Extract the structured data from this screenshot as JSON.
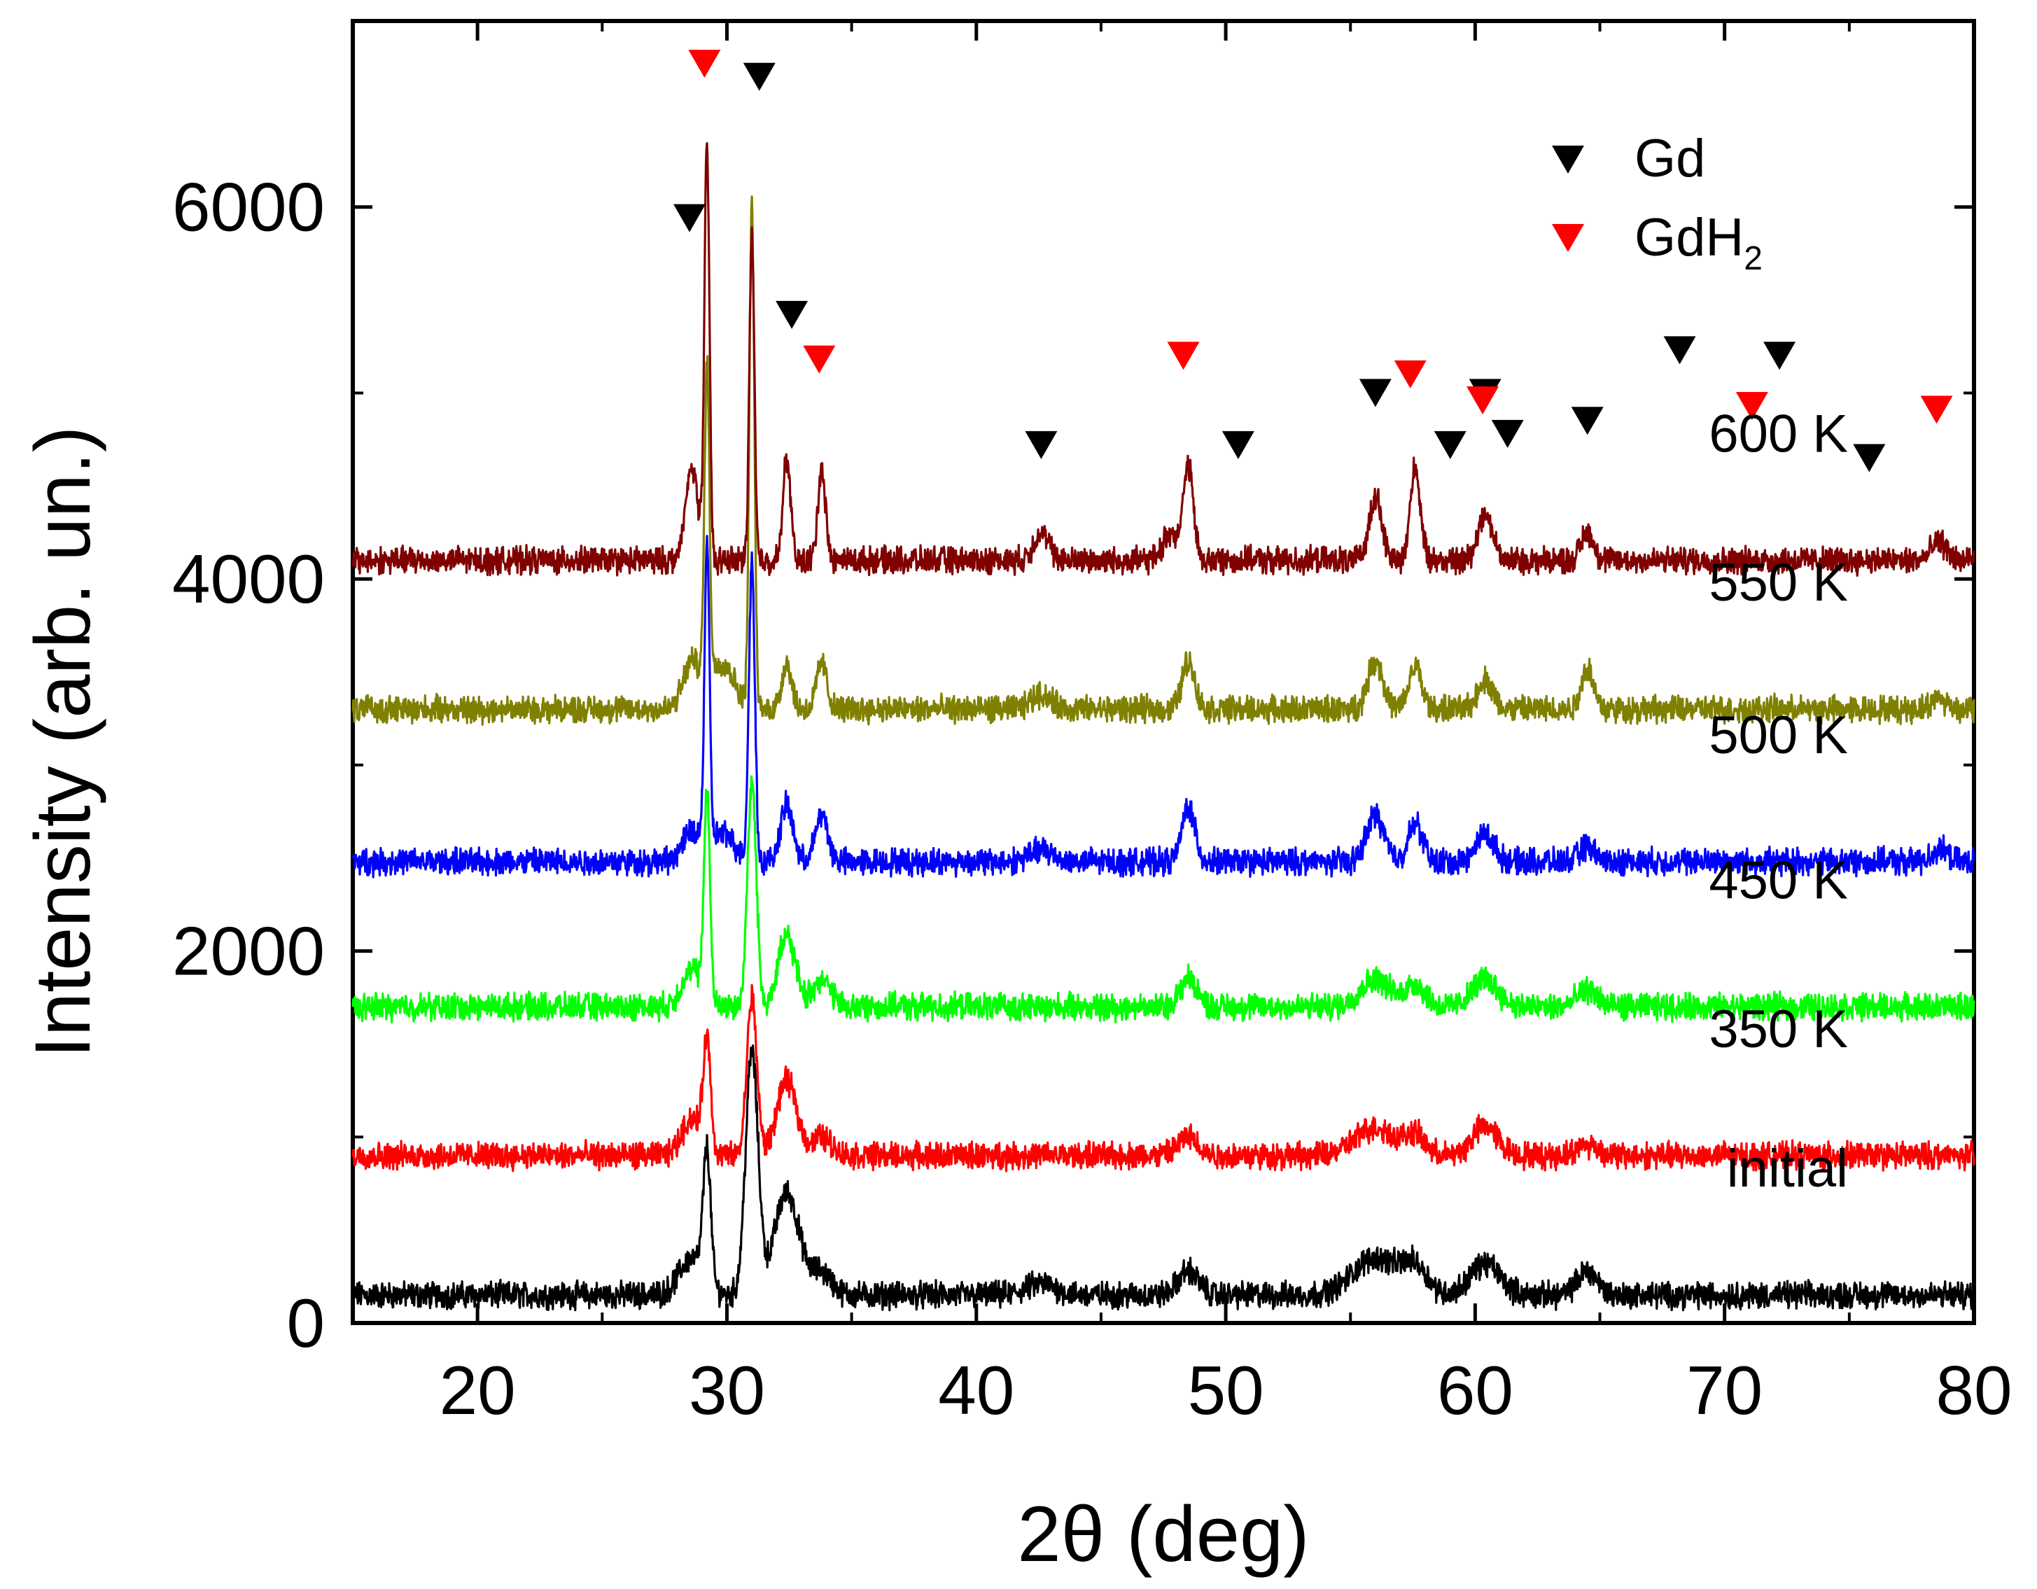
{
  "chart_data": {
    "type": "line",
    "title": "",
    "xlabel": "2θ (deg)",
    "ylabel": "Intensity (arb. un.)",
    "xlim": [
      15,
      80
    ],
    "ylim": [
      0,
      7000
    ],
    "xticks": [
      20,
      30,
      40,
      50,
      60,
      70,
      80
    ],
    "yticks": [
      0,
      2000,
      4000,
      6000
    ],
    "series": [
      {
        "name": "initial",
        "label": "initial",
        "color": "#000000",
        "baseline": 150,
        "peaks": [
          [
            28.6,
            200,
            0.5
          ],
          [
            29.2,
            700,
            0.15
          ],
          [
            31.0,
            1300,
            0.25
          ],
          [
            32.4,
            550,
            0.5
          ],
          [
            33.8,
            120,
            0.4
          ],
          [
            42.6,
            60,
            0.6
          ],
          [
            48.5,
            130,
            0.4
          ],
          [
            56.0,
            200,
            0.9
          ],
          [
            57.6,
            140,
            0.5
          ],
          [
            60.4,
            170,
            0.6
          ],
          [
            64.5,
            130,
            0.4
          ]
        ]
      },
      {
        "name": "350 K",
        "label": "350 K",
        "color": "#ff0000",
        "baseline": 900,
        "peaks": [
          [
            28.6,
            200,
            0.4
          ],
          [
            29.2,
            580,
            0.15
          ],
          [
            31.0,
            850,
            0.2
          ],
          [
            32.4,
            400,
            0.4
          ],
          [
            33.8,
            100,
            0.4
          ],
          [
            48.5,
            100,
            0.4
          ],
          [
            56.0,
            150,
            0.8
          ],
          [
            57.6,
            100,
            0.4
          ],
          [
            60.4,
            160,
            0.5
          ],
          [
            64.5,
            60,
            0.4
          ]
        ]
      },
      {
        "name": "450 K",
        "label": "450 K",
        "color": "#00ff00",
        "baseline": 1700,
        "peaks": [
          [
            28.6,
            200,
            0.4
          ],
          [
            29.2,
            1100,
            0.12
          ],
          [
            31.0,
            1200,
            0.18
          ],
          [
            32.4,
            380,
            0.35
          ],
          [
            33.8,
            150,
            0.35
          ],
          [
            48.5,
            150,
            0.35
          ],
          [
            56.0,
            150,
            0.6
          ],
          [
            57.6,
            120,
            0.4
          ],
          [
            60.4,
            150,
            0.5
          ],
          [
            64.5,
            90,
            0.4
          ]
        ]
      },
      {
        "name": "500 K",
        "label": "500 K",
        "color": "#0000ff",
        "baseline": 2480,
        "peaks": [
          [
            28.6,
            150,
            0.4
          ],
          [
            29.2,
            1600,
            0.1
          ],
          [
            29.8,
            150,
            0.5
          ],
          [
            31.0,
            1600,
            0.12
          ],
          [
            32.4,
            300,
            0.25
          ],
          [
            33.8,
            250,
            0.25
          ],
          [
            42.6,
            60,
            0.5
          ],
          [
            48.5,
            300,
            0.25
          ],
          [
            56.0,
            250,
            0.35
          ],
          [
            57.6,
            200,
            0.3
          ],
          [
            60.4,
            150,
            0.35
          ],
          [
            64.5,
            80,
            0.3
          ],
          [
            78.6,
            70,
            0.3
          ]
        ]
      },
      {
        "name": "550 K",
        "label": "550 K",
        "color": "#808000",
        "baseline": 3300,
        "peaks": [
          [
            28.6,
            250,
            0.35
          ],
          [
            29.2,
            1700,
            0.1
          ],
          [
            29.8,
            250,
            0.5
          ],
          [
            31.0,
            2700,
            0.1
          ],
          [
            32.4,
            250,
            0.2
          ],
          [
            33.8,
            250,
            0.2
          ],
          [
            42.6,
            80,
            0.4
          ],
          [
            48.5,
            260,
            0.25
          ],
          [
            56.0,
            260,
            0.3
          ],
          [
            57.6,
            230,
            0.25
          ],
          [
            60.4,
            160,
            0.3
          ],
          [
            64.5,
            220,
            0.25
          ],
          [
            78.6,
            60,
            0.3
          ]
        ]
      },
      {
        "name": "600 K",
        "label": "600 K",
        "color": "#800000",
        "baseline": 4100,
        "peaks": [
          [
            28.6,
            500,
            0.25
          ],
          [
            29.2,
            2200,
            0.1
          ],
          [
            31.0,
            1750,
            0.1
          ],
          [
            32.4,
            550,
            0.15
          ],
          [
            33.8,
            500,
            0.15
          ],
          [
            42.6,
            150,
            0.3
          ],
          [
            47.8,
            150,
            0.3
          ],
          [
            48.5,
            500,
            0.2
          ],
          [
            56.0,
            350,
            0.25
          ],
          [
            57.6,
            500,
            0.2
          ],
          [
            60.4,
            250,
            0.3
          ],
          [
            64.5,
            150,
            0.25
          ],
          [
            78.6,
            100,
            0.3
          ]
        ]
      }
    ],
    "markers": {
      "Gd": {
        "color": "#000000",
        "points": [
          [
            28.5,
            5940
          ],
          [
            31.3,
            6700
          ],
          [
            32.6,
            5420
          ],
          [
            42.6,
            4720
          ],
          [
            50.5,
            4720
          ],
          [
            56.0,
            5000
          ],
          [
            59.0,
            4720
          ],
          [
            60.4,
            5000
          ],
          [
            61.3,
            4780
          ],
          [
            64.5,
            4850
          ],
          [
            68.2,
            5230
          ],
          [
            72.2,
            5200
          ],
          [
            75.8,
            4650
          ]
        ]
      },
      "GdH2": {
        "color": "#ff0000",
        "points": [
          [
            29.1,
            6770
          ],
          [
            33.7,
            5180
          ],
          [
            48.3,
            5200
          ],
          [
            57.4,
            5100
          ],
          [
            60.3,
            4960
          ],
          [
            71.1,
            4930
          ],
          [
            78.5,
            4910
          ]
        ]
      }
    },
    "legend": {
      "position": "top-right",
      "entries": [
        {
          "name": "Gd",
          "color": "#000000",
          "text": "Gd"
        },
        {
          "name": "GdH2",
          "color": "#ff0000",
          "text": "GdH",
          "subscript": "2"
        }
      ]
    },
    "grid": false
  }
}
